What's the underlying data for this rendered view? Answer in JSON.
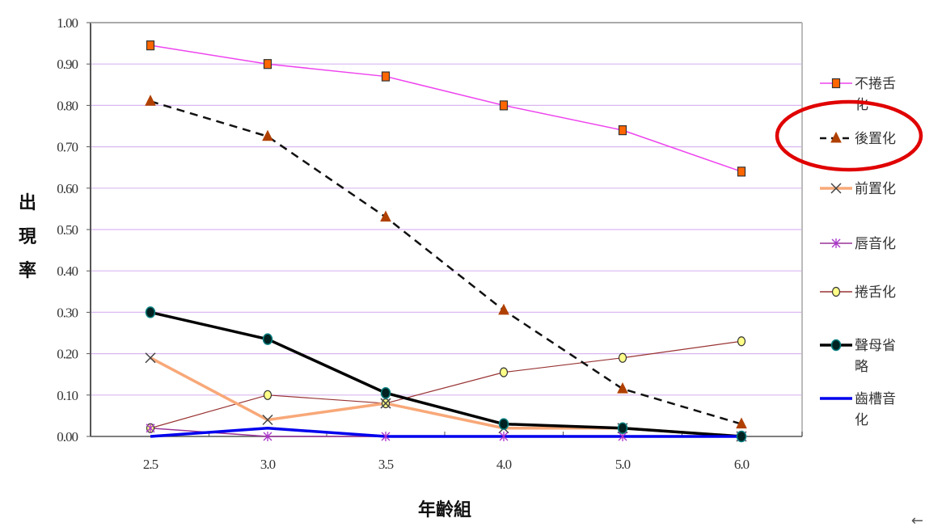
{
  "chart_data": {
    "type": "line",
    "title": "",
    "xlabel": "年齡組",
    "ylabel": "出現率",
    "ylabel_chars": [
      "出",
      "現",
      "率"
    ],
    "categories": [
      "2.5",
      "3.0",
      "3.5",
      "4.0",
      "5.0",
      "6.0"
    ],
    "ylim": [
      0,
      1.0
    ],
    "yticks": [
      "0.00",
      "0.10",
      "0.20",
      "0.30",
      "0.40",
      "0.50",
      "0.60",
      "0.70",
      "0.80",
      "0.90",
      "1.00"
    ],
    "grid": true,
    "grid_color": "#d9b8f0",
    "legend_position": "right",
    "series": [
      {
        "name": "不捲舌化",
        "legend_lines": [
          "不捲舌",
          "化"
        ],
        "color": "#ee44ee",
        "width": 1.5,
        "dash": "",
        "marker": "square",
        "marker_fill": "#ff6600",
        "marker_stroke": "#333333",
        "values": [
          0.945,
          0.9,
          0.87,
          0.8,
          0.74,
          0.64
        ]
      },
      {
        "name": "後置化",
        "legend_lines": [
          "後置化"
        ],
        "color": "#111111",
        "width": 2.5,
        "dash": "10,7",
        "marker": "triangle",
        "marker_fill": "#b04000",
        "marker_stroke": "#b04000",
        "values": [
          0.81,
          0.725,
          0.53,
          0.305,
          0.115,
          0.03
        ]
      },
      {
        "name": "前置化",
        "legend_lines": [
          "前置化"
        ],
        "color": "#f8a878",
        "width": 3.5,
        "dash": "",
        "marker": "x",
        "marker_fill": "none",
        "marker_stroke": "#444444",
        "values": [
          0.19,
          0.04,
          0.08,
          0.02,
          0.02,
          0.0
        ]
      },
      {
        "name": "唇音化",
        "legend_lines": [
          "唇音化"
        ],
        "color": "#993399",
        "width": 1.5,
        "dash": "",
        "marker": "star",
        "marker_fill": "none",
        "marker_stroke": "#aa33cc",
        "values": [
          0.02,
          0.0,
          0.0,
          0.0,
          0.0,
          0.0
        ]
      },
      {
        "name": "捲舌化",
        "legend_lines": [
          "捲舌化"
        ],
        "color": "#993333",
        "width": 1.2,
        "dash": "",
        "marker": "circle",
        "marker_fill": "#ffff88",
        "marker_stroke": "#333333",
        "values": [
          0.02,
          0.1,
          0.08,
          0.155,
          0.19,
          0.23
        ]
      },
      {
        "name": "聲母省略",
        "legend_lines": [
          "聲母省",
          "略"
        ],
        "color": "#000000",
        "width": 3.5,
        "dash": "",
        "marker": "dot",
        "marker_fill": "#002222",
        "marker_stroke": "#0a8080",
        "values": [
          0.3,
          0.235,
          0.105,
          0.03,
          0.02,
          0.0
        ]
      },
      {
        "name": "齒槽音化",
        "legend_lines": [
          "齒槽音",
          "化"
        ],
        "color": "#0000ee",
        "width": 3.5,
        "dash": "",
        "marker": "none",
        "marker_fill": "none",
        "marker_stroke": "none",
        "values": [
          0.0,
          0.02,
          0.0,
          0.0,
          0.0,
          0.0
        ]
      }
    ],
    "annotations": [
      {
        "type": "ellipse",
        "target": "後置化 legend entry",
        "color": "#e00000"
      }
    ]
  },
  "corner_glyph": "←"
}
